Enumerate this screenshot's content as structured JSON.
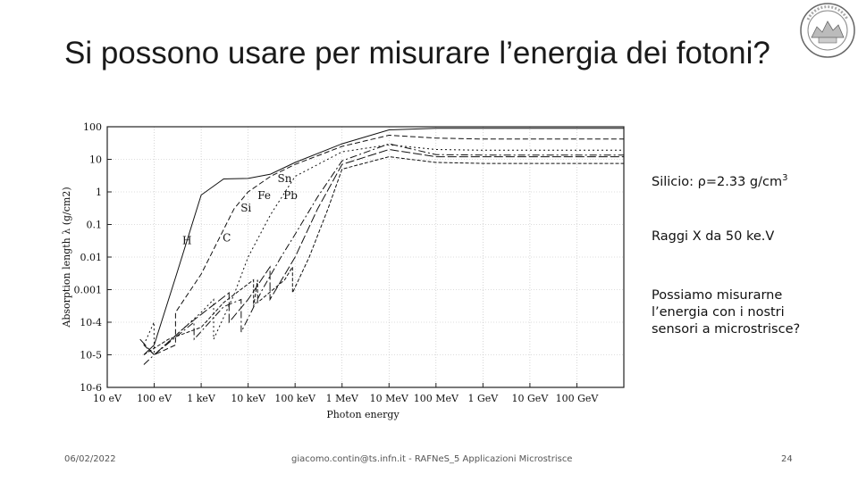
{
  "slide": {
    "title": "Si possono usare per misurare l’energia dei fotoni?",
    "side_text": {
      "silicon_prefix": "Silicio: ",
      "silicon_rho": "ρ=2.33 g/cm",
      "silicon_exp": "3",
      "xray": "Raggi X da 50 ke.V",
      "question": "Possiamo misurarne l’energia con i nostri sensori a microstrisce?"
    },
    "footer": {
      "date": "06/02/2022",
      "center": "giacomo.contin@ts.infn.it - RAFNeS_5 Applicazioni Microstrisce",
      "page": "24"
    },
    "logo": "university-seal"
  },
  "chart_data": {
    "type": "line",
    "title": "",
    "xlabel": "Photon energy",
    "ylabel": "Absorption length λ (g/cm2)",
    "x_scale": "log",
    "y_scale": "log",
    "xlim_eV": [
      10,
      1000000000000.0
    ],
    "ylim": [
      1e-06,
      100
    ],
    "x_ticks": [
      "10 eV",
      "100 eV",
      "1 keV",
      "10 keV",
      "100 keV",
      "1 MeV",
      "10 MeV",
      "100 MeV",
      "1 GeV",
      "10 GeV",
      "100 GeV"
    ],
    "x_tick_values_eV": [
      10,
      100,
      1000.0,
      10000.0,
      100000.0,
      1000000.0,
      10000000.0,
      100000000.0,
      1000000000.0,
      10000000000.0,
      100000000000.0
    ],
    "y_ticks": [
      "100",
      "10",
      "1",
      "0.1",
      "0.01",
      "0.001",
      "10-4",
      "10-5",
      "10-6"
    ],
    "y_tick_values": [
      100,
      10,
      1,
      0.1,
      0.01,
      0.001,
      0.0001,
      1e-05,
      1e-06
    ],
    "grid": true,
    "series": [
      {
        "name": "H",
        "dash": "",
        "points": [
          [
            60,
            1e-05
          ],
          [
            100,
            2e-05
          ],
          [
            300,
            0.003
          ],
          [
            1000,
            0.8
          ],
          [
            3000,
            2.5
          ],
          [
            10000.0,
            2.6
          ],
          [
            30000.0,
            3.5
          ],
          [
            100000.0,
            8
          ],
          [
            1000000.0,
            30
          ],
          [
            10000000.0,
            80
          ],
          [
            100000000.0,
            90
          ],
          [
            1000000000.0,
            90
          ],
          [
            1000000000000.0,
            90
          ]
        ]
      },
      {
        "name": "C",
        "dash": "6,3",
        "points": [
          [
            60,
            2e-05
          ],
          [
            100,
            1e-05
          ],
          [
            284,
            2e-05
          ],
          [
            285,
            0.0002
          ],
          [
            1000,
            0.003
          ],
          [
            5000,
            0.3
          ],
          [
            10000.0,
            1
          ],
          [
            30000.0,
            3
          ],
          [
            100000.0,
            7
          ],
          [
            1000000.0,
            25
          ],
          [
            10000000.0,
            55
          ],
          [
            100000000.0,
            45
          ],
          [
            1000000000.0,
            42
          ],
          [
            1000000000000.0,
            42
          ]
        ]
      },
      {
        "name": "Si",
        "dash": "2,3",
        "points": [
          [
            60,
            2e-05
          ],
          [
            99,
            0.0001
          ],
          [
            100,
            1e-05
          ],
          [
            1000,
            0.0002
          ],
          [
            1839,
            0.0005
          ],
          [
            1840,
            3e-05
          ],
          [
            5000,
            0.0007
          ],
          [
            10000.0,
            0.01
          ],
          [
            30000.0,
            0.2
          ],
          [
            100000.0,
            3
          ],
          [
            1000000.0,
            17
          ],
          [
            10000000.0,
            28
          ],
          [
            100000000.0,
            20
          ],
          [
            1000000000.0,
            19
          ],
          [
            1000000000000.0,
            19
          ]
        ]
      },
      {
        "name": "Fe",
        "dash": "8,3,2,3",
        "points": [
          [
            60,
            5e-06
          ],
          [
            100,
            1e-05
          ],
          [
            700,
            0.0001
          ],
          [
            708,
            3e-05
          ],
          [
            3000,
            0.0003
          ],
          [
            7100,
            0.0005
          ],
          [
            7112,
            5e-05
          ],
          [
            20000.0,
            0.001
          ],
          [
            50000.0,
            0.01
          ],
          [
            100000.0,
            0.05
          ],
          [
            300000.0,
            0.7
          ],
          [
            1000000.0,
            9
          ],
          [
            10000000.0,
            30
          ],
          [
            100000000.0,
            14
          ],
          [
            1000000000.0,
            13.5
          ],
          [
            1000000000000.0,
            13.5
          ]
        ]
      },
      {
        "name": "Sn",
        "dash": "10,3",
        "points": [
          [
            50,
            3e-05
          ],
          [
            100,
            1e-05
          ],
          [
            500,
            8e-05
          ],
          [
            3929,
            0.0008
          ],
          [
            3930,
            0.0001
          ],
          [
            10000.0,
            0.0005
          ],
          [
            29200,
            0.005
          ],
          [
            29201,
            0.0005
          ],
          [
            100000.0,
            0.01
          ],
          [
            300000.0,
            0.3
          ],
          [
            1000000.0,
            7
          ],
          [
            10000000.0,
            20
          ],
          [
            100000000.0,
            12
          ],
          [
            1000000000.0,
            12
          ],
          [
            1000000000000.0,
            12
          ]
        ]
      },
      {
        "name": "Pb",
        "dash": "4,2",
        "points": [
          [
            60,
            1e-05
          ],
          [
            200,
            3e-05
          ],
          [
            1000,
            7e-05
          ],
          [
            3000,
            0.0004
          ],
          [
            13035,
            0.002
          ],
          [
            13036,
            0.0003
          ],
          [
            15860,
            0.002
          ],
          [
            15861,
            0.0004
          ],
          [
            60000.0,
            0.002
          ],
          [
            88000,
            0.005
          ],
          [
            88001,
            0.0008
          ],
          [
            200000.0,
            0.01
          ],
          [
            500000.0,
            0.3
          ],
          [
            1000000.0,
            5
          ],
          [
            10000000.0,
            12
          ],
          [
            100000000.0,
            8
          ],
          [
            1000000000.0,
            7.5
          ],
          [
            1000000000000.0,
            7.5
          ]
        ]
      }
    ],
    "labels": [
      {
        "text": "H",
        "x": 500,
        "y": 0.025
      },
      {
        "text": "C",
        "x": 3500,
        "y": 0.03
      },
      {
        "text": "Si",
        "x": 9000,
        "y": 0.25
      },
      {
        "text": "Fe",
        "x": 22000,
        "y": 0.6
      },
      {
        "text": "Pb",
        "x": 80000,
        "y": 0.6
      },
      {
        "text": "Sn",
        "x": 60000,
        "y": 2.0
      }
    ]
  }
}
